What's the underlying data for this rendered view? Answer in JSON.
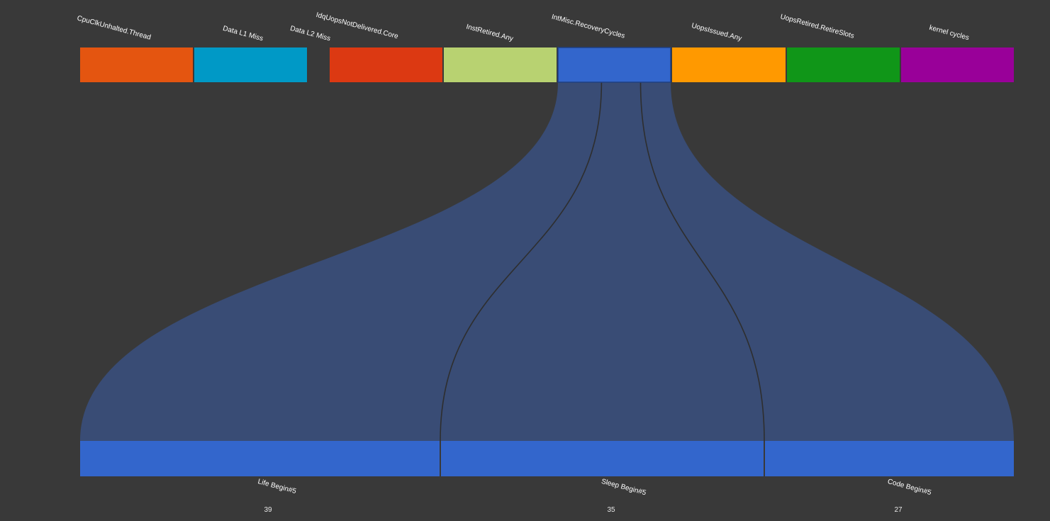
{
  "colors": {
    "background": "#393939",
    "flow_fill": "#394c75",
    "flow_divider": "#2e2e2e",
    "bottom_bar": "#3366cc",
    "bottom_divider": "#393939"
  },
  "top_categories": [
    {
      "label": "CpuClkUnhalted.Thread",
      "color": "#e45510"
    },
    {
      "label": "Data L1 Miss",
      "color": "#0099c6"
    },
    {
      "label": "Data L2 Miss",
      "color": "#393939"
    },
    {
      "label": "IdqUopsNotDelivered.Core",
      "color": "#dc3912"
    },
    {
      "label": "InstRetired.Any",
      "color": "#b8d271"
    },
    {
      "label": "IntMisc.RecoveryCycles",
      "color": "#3366cc"
    },
    {
      "label": "UopsIssued.Any",
      "color": "#ff9900"
    },
    {
      "label": "UopsRetired.RetireSlots",
      "color": "#109618"
    },
    {
      "label": "kernel cycles",
      "color": "#990099"
    }
  ],
  "selected_category": "IntMisc.RecoveryCycles",
  "bottom_categories": [
    {
      "label": "Life Begin#5",
      "count": "39"
    },
    {
      "label": "Sleep Begin#5",
      "count": "35"
    },
    {
      "label": "Code Begin#5",
      "count": "27"
    }
  ]
}
